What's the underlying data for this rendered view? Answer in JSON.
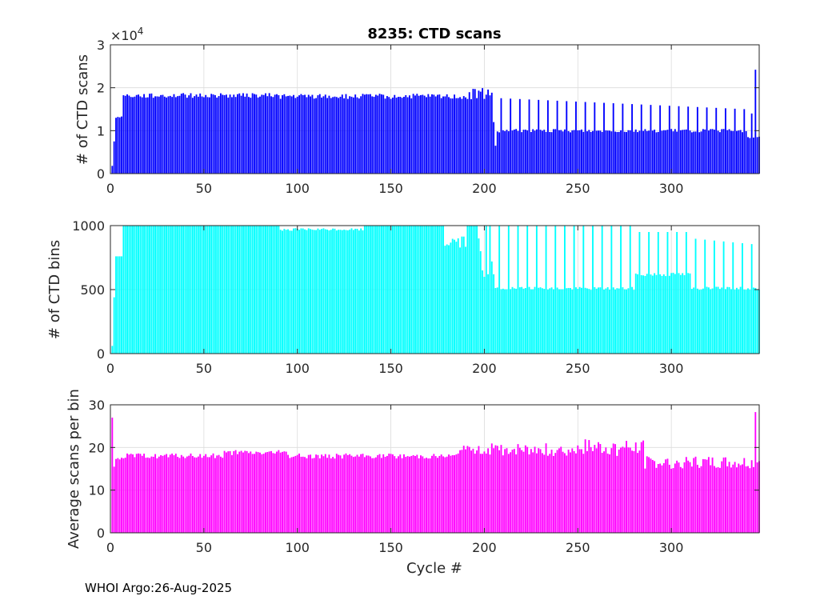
{
  "footer": "WHOI Argo:26-Aug-2025",
  "chart_data": [
    {
      "type": "bar",
      "title": "8235: CTD scans",
      "ylabel": "# of CTD scans",
      "xlabel": "",
      "xlim": [
        0,
        347
      ],
      "ylim": [
        0,
        30000
      ],
      "exponent_label": "×10",
      "exponent_power": "4",
      "xticks": [
        0,
        50,
        100,
        150,
        200,
        250,
        300
      ],
      "xtick_labels": [
        "0",
        "50",
        "100",
        "150",
        "200",
        "250",
        "300"
      ],
      "yticks": [
        0,
        10000,
        20000,
        30000
      ],
      "ytick_labels": [
        "0",
        "1",
        "2",
        "3"
      ],
      "grid": true,
      "color": "#0000ff",
      "segments": [
        {
          "range": [
            1,
            2
          ],
          "values": [
            1800,
            7500
          ]
        },
        {
          "range": [
            3,
            6
          ],
          "values": [
            13000,
            13200,
            13100,
            13300
          ]
        },
        {
          "range": [
            7,
            90
          ],
          "base": 18200,
          "jitter": 550,
          "values_note": "approx 17500-19500"
        },
        {
          "range": [
            91,
            190
          ],
          "base": 18000,
          "jitter": 600
        },
        {
          "range": [
            191,
            204
          ],
          "base": 18500,
          "jitter": 1500
        },
        {
          "range": [
            205,
            206
          ],
          "values": [
            12000,
            6500
          ]
        },
        {
          "range": [
            207,
            340
          ],
          "base": 10000,
          "jitter": 400,
          "spike_every": 5,
          "spike_value": 17600,
          "spike_decline_to": 15000
        },
        {
          "range": [
            341,
            344
          ],
          "values": [
            8500,
            8300,
            14000,
            8400
          ]
        },
        {
          "range": [
            345,
            345
          ],
          "values": [
            24200
          ]
        },
        {
          "range": [
            346,
            347
          ],
          "values": [
            8500,
            8600
          ]
        }
      ]
    },
    {
      "type": "bar",
      "title": "",
      "ylabel": "# of CTD bins",
      "xlabel": "",
      "xlim": [
        0,
        347
      ],
      "ylim": [
        0,
        1000
      ],
      "xticks": [
        0,
        50,
        100,
        150,
        200,
        250,
        300
      ],
      "xtick_labels": [
        "0",
        "50",
        "100",
        "150",
        "200",
        "250",
        "300"
      ],
      "yticks": [
        0,
        500,
        1000
      ],
      "ytick_labels": [
        "0",
        "500",
        "1000"
      ],
      "grid": true,
      "color": "#00ffff",
      "segments": [
        {
          "range": [
            1,
            2
          ],
          "values": [
            60,
            440
          ]
        },
        {
          "range": [
            3,
            6
          ],
          "values": [
            760,
            760,
            760,
            760
          ]
        },
        {
          "range": [
            7,
            90
          ],
          "base": 1000,
          "jitter": 0
        },
        {
          "range": [
            91,
            135
          ],
          "base": 970,
          "jitter": 10
        },
        {
          "range": [
            136,
            178
          ],
          "base": 1000,
          "jitter": 0
        },
        {
          "range": [
            179,
            190
          ],
          "base": 880,
          "jitter": 60
        },
        {
          "range": [
            191,
            196
          ],
          "base": 1000,
          "jitter": 0
        },
        {
          "range": [
            197,
            205
          ],
          "values": [
            900,
            800,
            650,
            600,
            1000,
            620,
            1000,
            720,
            620
          ]
        },
        {
          "range": [
            206,
            280
          ],
          "base": 510,
          "jitter": 12,
          "spike_every": 5,
          "spike_value": 1000
        },
        {
          "range": [
            281,
            310
          ],
          "base": 620,
          "jitter": 15,
          "spike_every": 5,
          "spike_value": 950
        },
        {
          "range": [
            311,
            347
          ],
          "base": 510,
          "jitter": 12,
          "spike_every": 5,
          "spike_value": 900,
          "spike_decline_to": 850
        }
      ]
    },
    {
      "type": "bar",
      "title": "",
      "ylabel": "Average scans per bin",
      "xlabel": "Cycle #",
      "xlim": [
        0,
        347
      ],
      "ylim": [
        0,
        30
      ],
      "xticks": [
        0,
        50,
        100,
        150,
        200,
        250,
        300
      ],
      "xtick_labels": [
        "0",
        "50",
        "100",
        "150",
        "200",
        "250",
        "300"
      ],
      "yticks": [
        0,
        10,
        20,
        30
      ],
      "ytick_labels": [
        "0",
        "10",
        "20",
        "30"
      ],
      "grid": true,
      "color": "#ff00ff",
      "segments": [
        {
          "range": [
            1,
            2
          ],
          "values": [
            27,
            15.5
          ]
        },
        {
          "range": [
            3,
            6
          ],
          "values": [
            17.3,
            17.5,
            17.2,
            17.6
          ]
        },
        {
          "range": [
            7,
            60
          ],
          "base": 18.0,
          "jitter": 0.6
        },
        {
          "range": [
            61,
            95
          ],
          "base": 18.8,
          "jitter": 0.6
        },
        {
          "range": [
            96,
            185
          ],
          "base": 18.0,
          "jitter": 0.6
        },
        {
          "range": [
            186,
            200
          ],
          "base": 19.5,
          "jitter": 1.0
        },
        {
          "range": [
            201,
            250
          ],
          "base": 19.5,
          "jitter": 1.5
        },
        {
          "range": [
            251,
            285
          ],
          "base": 20.0,
          "jitter": 2.0
        },
        {
          "range": [
            286,
            344
          ],
          "base": 16.5,
          "jitter": 1.5
        },
        {
          "range": [
            345,
            345
          ],
          "values": [
            28.3
          ]
        },
        {
          "range": [
            346,
            347
          ],
          "values": [
            16.5,
            16.8
          ]
        }
      ]
    }
  ]
}
